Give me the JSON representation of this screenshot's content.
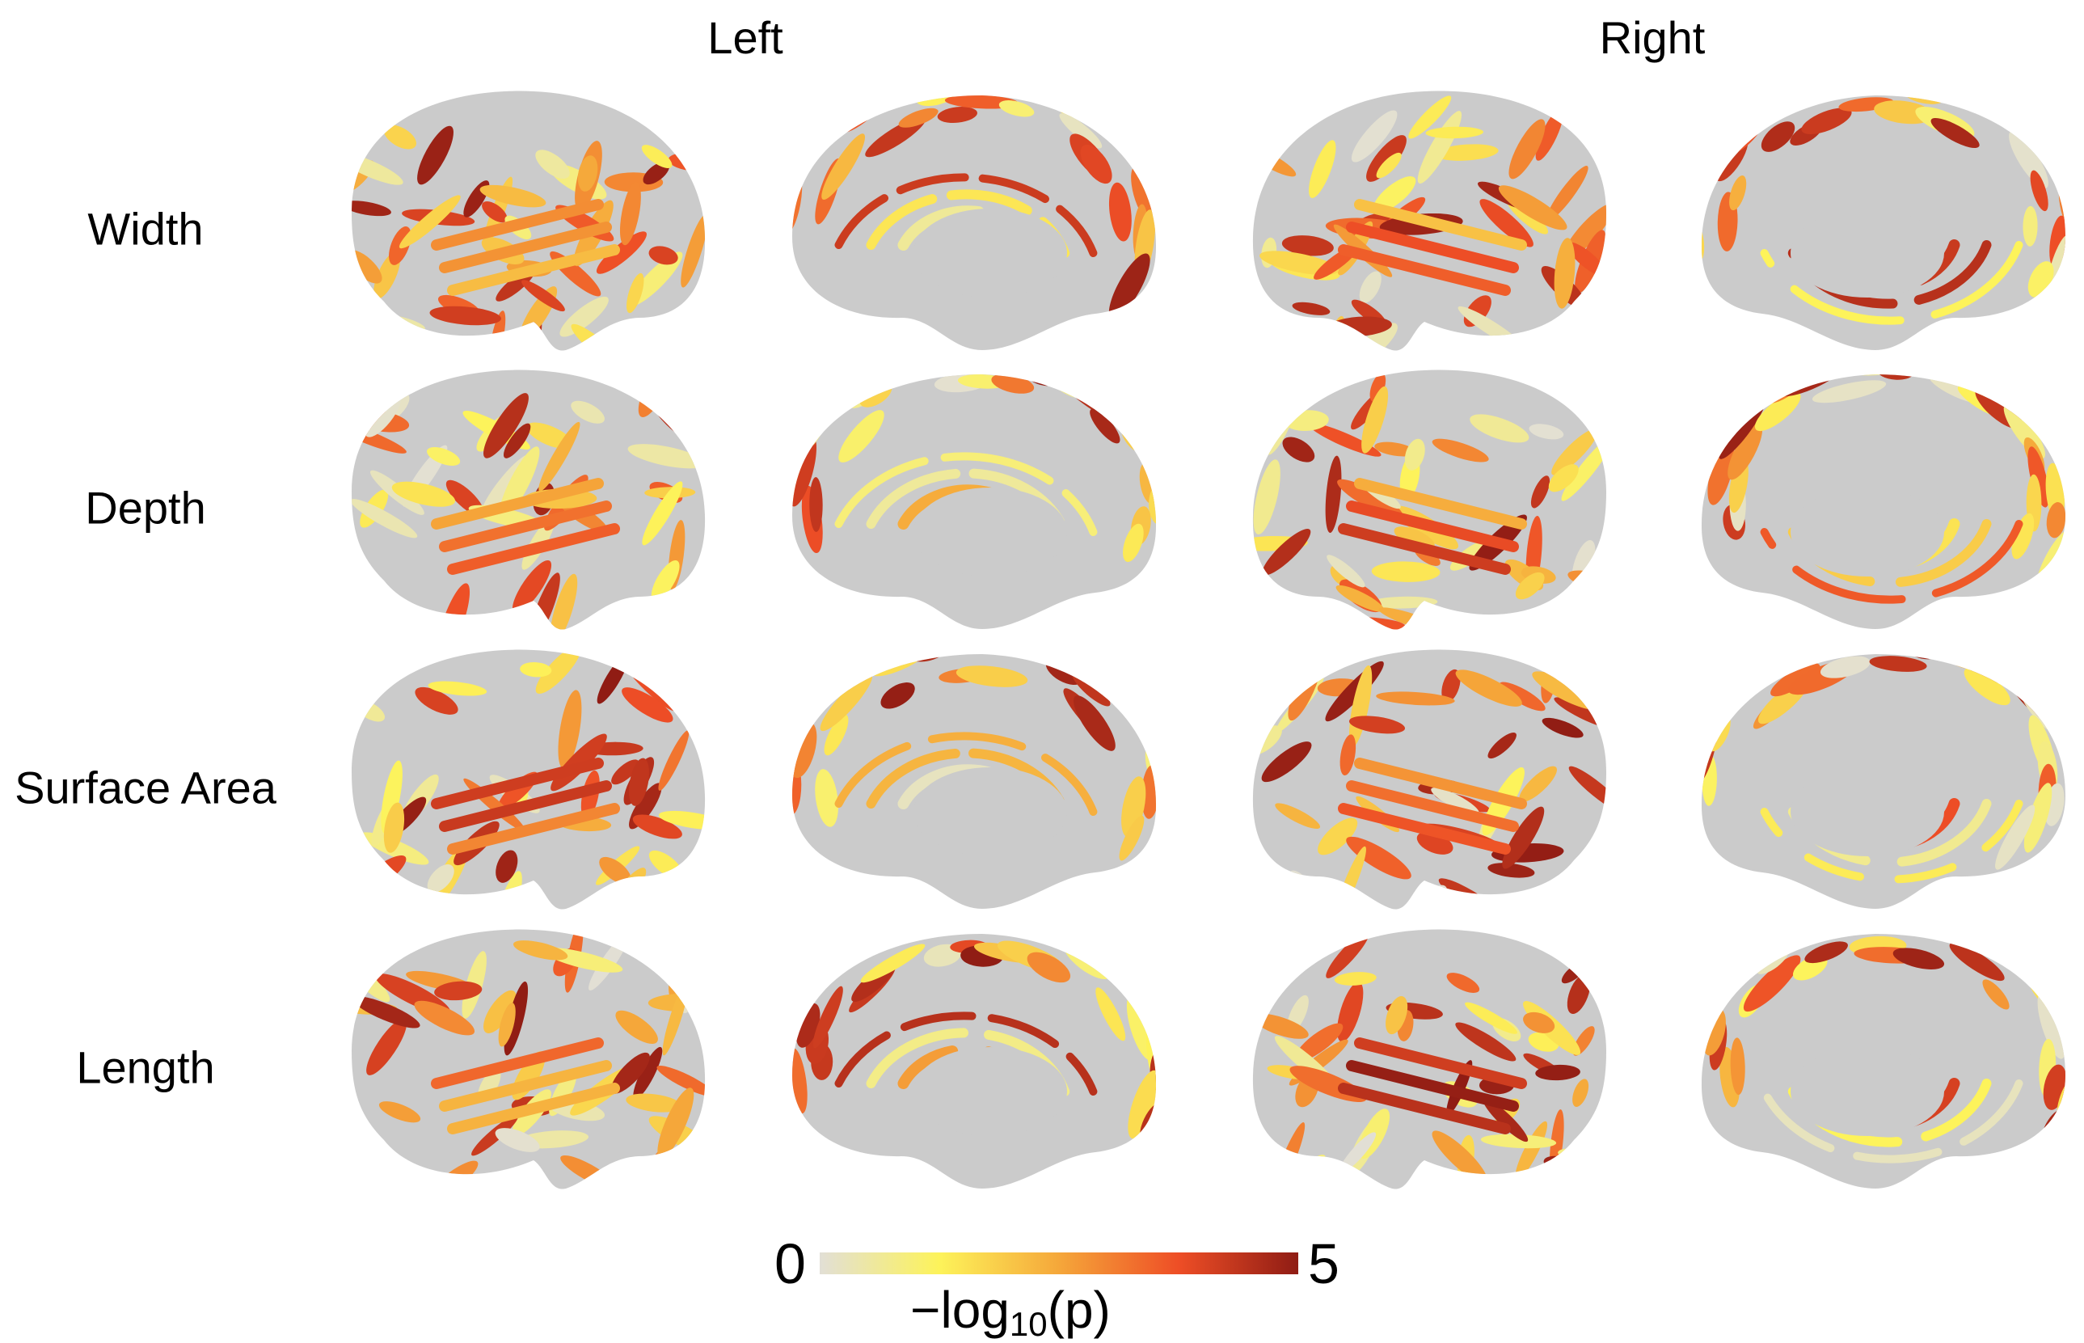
{
  "columns": {
    "left": "Left",
    "right": "Right"
  },
  "rows": [
    {
      "label": "Width"
    },
    {
      "label": "Depth"
    },
    {
      "label": "Surface Area"
    },
    {
      "label": "Length"
    }
  ],
  "views": [
    "lateral",
    "medial",
    "lateral",
    "medial"
  ],
  "colorbar": {
    "min": "0",
    "max": "5",
    "title_prefix": "−log",
    "title_sub": "10",
    "title_suffix": "(p)",
    "colors": [
      "#e2dfd6",
      "#fdf35a",
      "#f5a73a",
      "#ee4e26",
      "#8f1c14"
    ]
  },
  "chart_data": {
    "type": "heatmap",
    "value_range": [
      0,
      5
    ],
    "colorbar_label": "−log10(p)"
  }
}
